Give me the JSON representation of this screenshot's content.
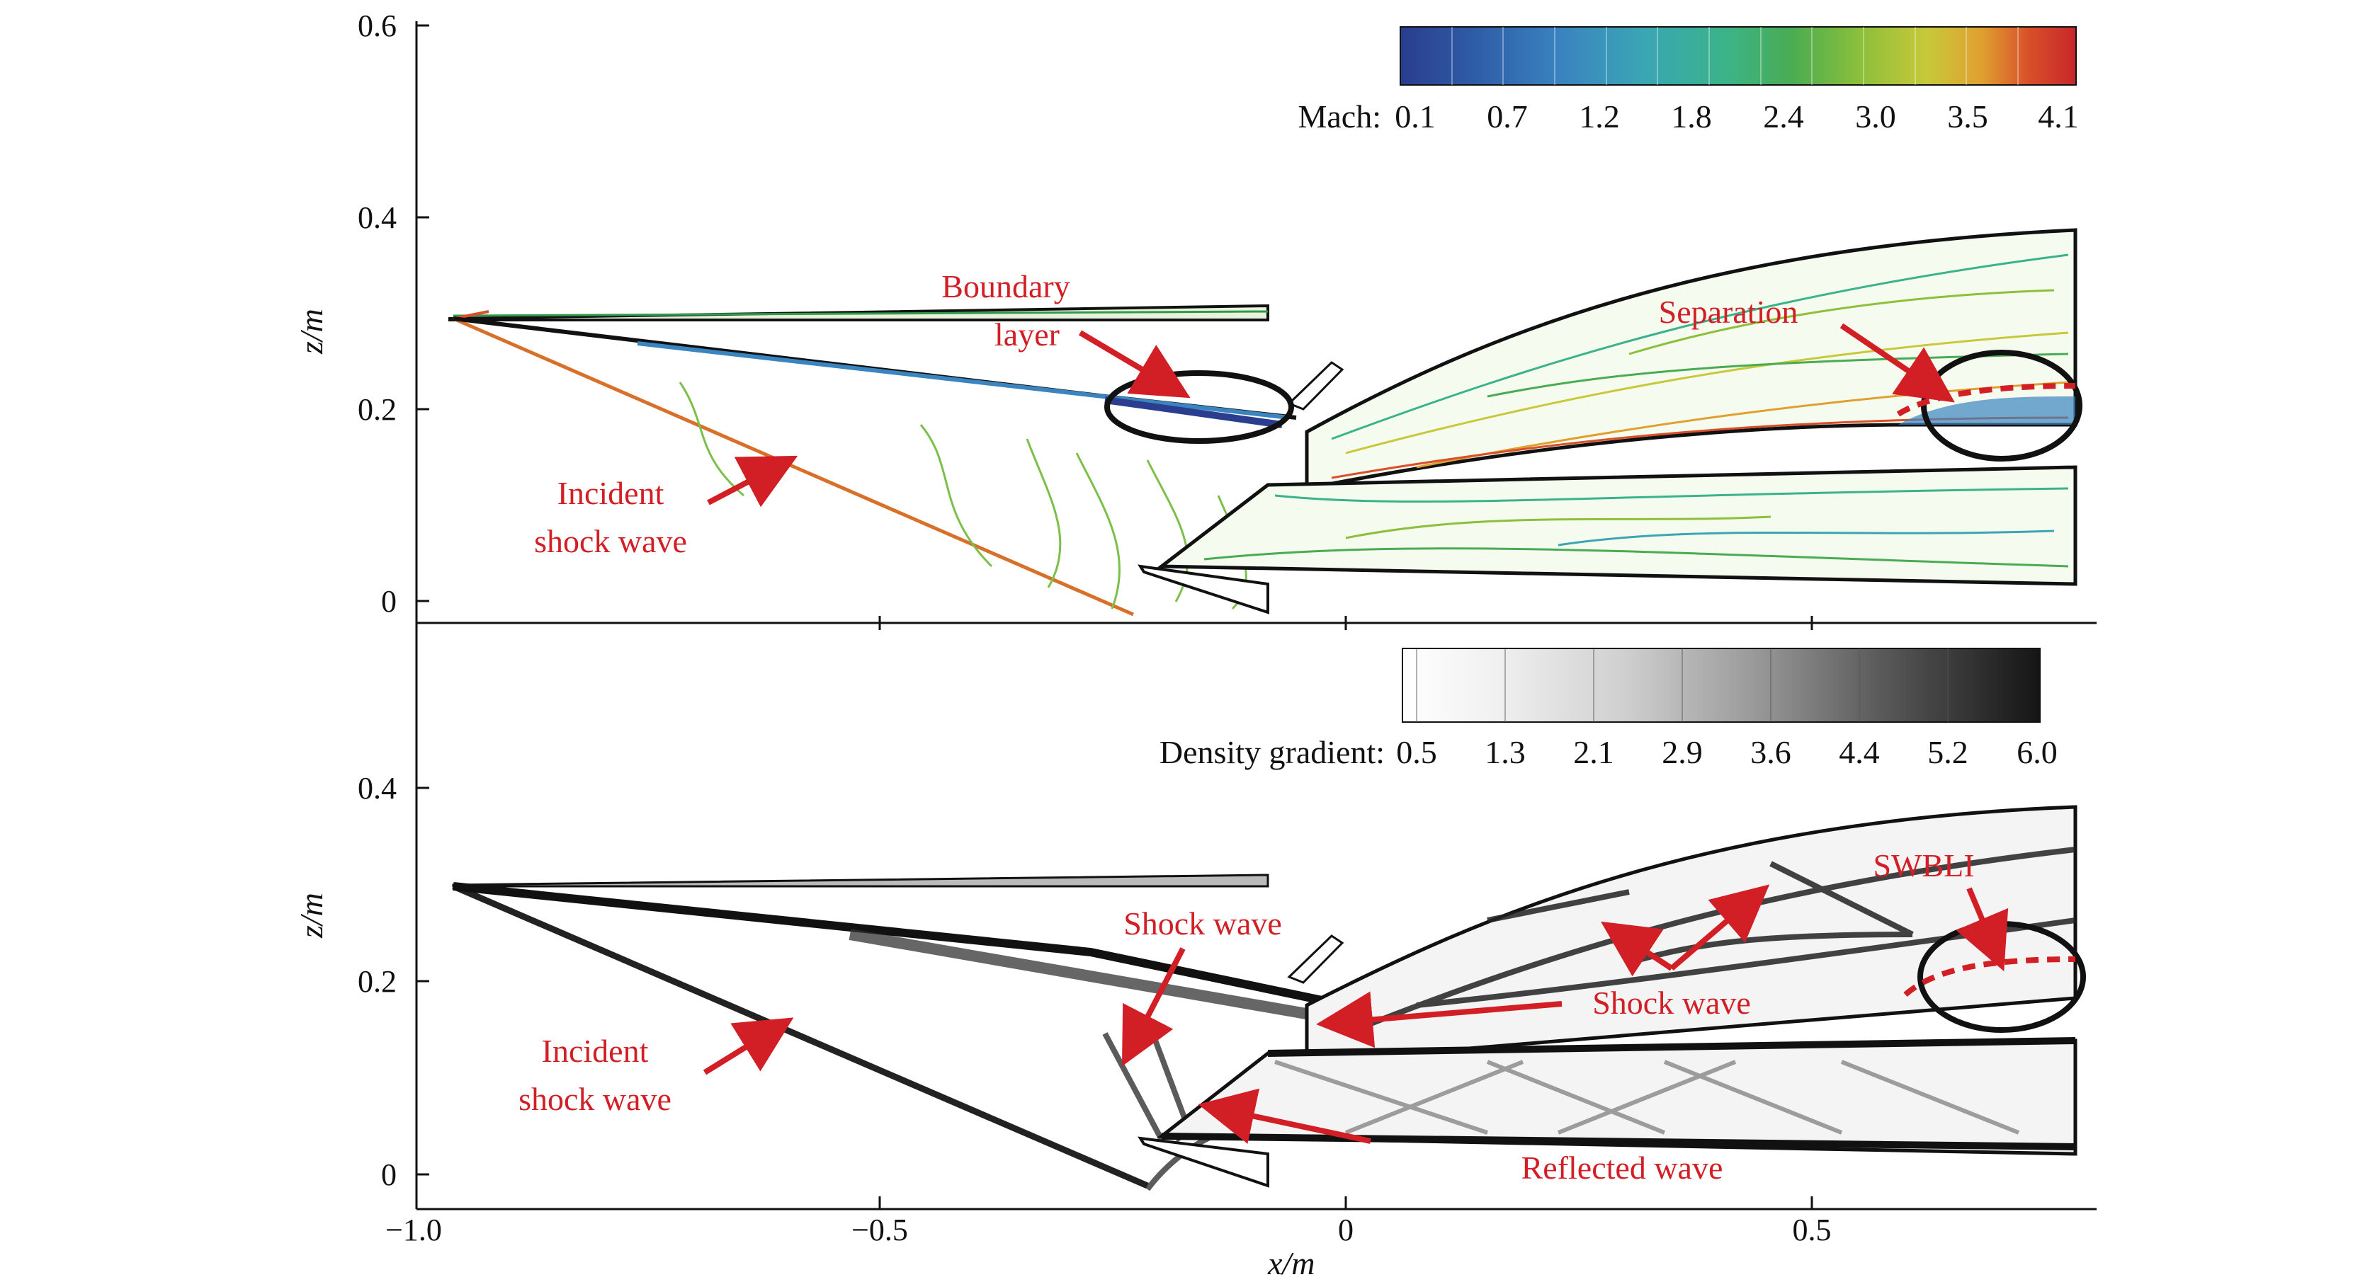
{
  "axes": {
    "x_label": "x/m",
    "z_label": "z/m",
    "x_ticks": [
      "−1.0",
      "−0.5",
      "0",
      "0.5"
    ],
    "top_z_ticks": [
      "0",
      "0.2",
      "0.4",
      "0.6"
    ],
    "bottom_z_ticks": [
      "0",
      "0.2",
      "0.4"
    ]
  },
  "top_panel": {
    "colorbar_label": "Mach:",
    "colorbar_ticks": [
      "0.1",
      "0.7",
      "1.2",
      "1.8",
      "2.4",
      "3.0",
      "3.5",
      "4.1"
    ],
    "colors": [
      "#2a3d8f",
      "#2f5fa8",
      "#3a84c0",
      "#3aa6b4",
      "#3bb38a",
      "#4aac52",
      "#8cbf3a",
      "#c7c93a",
      "#e0a030",
      "#d8502a",
      "#c8262a"
    ],
    "annotations": {
      "boundary_layer_1": "Boundary",
      "boundary_layer_2": "layer",
      "separation": "Separation",
      "incident_1": "Incident",
      "incident_2": "shock wave"
    }
  },
  "bottom_panel": {
    "colorbar_label": "Density gradient:",
    "colorbar_ticks": [
      "0.5",
      "1.3",
      "2.1",
      "2.9",
      "3.6",
      "4.4",
      "5.2",
      "6.0"
    ],
    "annotations": {
      "shock_wave_1": "Shock wave",
      "shock_wave_2": "Shock wave",
      "swbli": "SWBLI",
      "incident_1": "Incident",
      "incident_2": "shock wave",
      "reflected": "Reflected wave"
    }
  },
  "annotation_color": "#d21f26"
}
